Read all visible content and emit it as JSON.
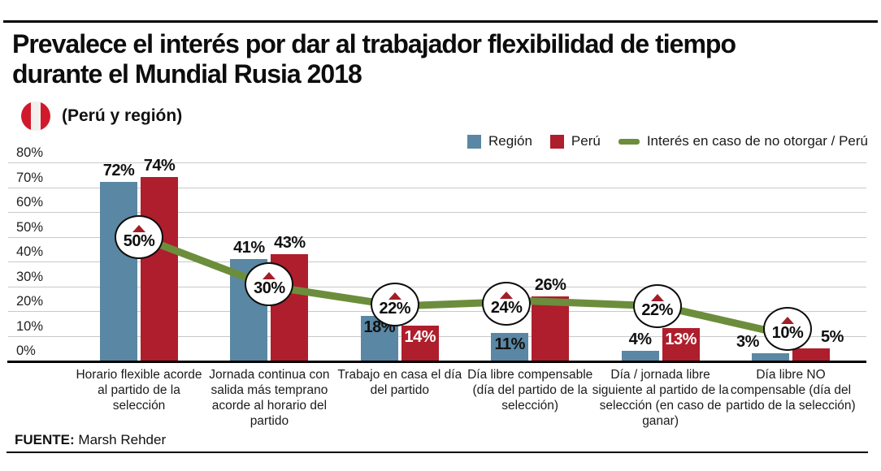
{
  "header": {
    "title": "Prevalece el interés por dar al trabajador flexibilidad de tiempo durante el Mundial Rusia 2018",
    "subtitle": "(Perú y región)"
  },
  "legend": {
    "items": [
      {
        "label": "Región",
        "swatch": "square",
        "color": "#5A87A3"
      },
      {
        "label": "Perú",
        "swatch": "square",
        "color": "#AE1E2C"
      },
      {
        "label": "Interés en caso de no otorgar / Perú",
        "swatch": "line",
        "color": "#6C8E3C"
      }
    ]
  },
  "source": {
    "prefix": "FUENTE:",
    "name": "Marsh Rehder"
  },
  "chart_data": {
    "type": "bar",
    "title": "Prevalece el interés por dar al trabajador flexibilidad de tiempo durante el Mundial Rusia 2018",
    "subtitle": "(Perú y región)",
    "categories": [
      "Horario flexible acorde al partido de la selección",
      "Jornada continua con salida más temprano acorde al horario del partido",
      "Trabajo en casa el día del partido",
      "Día libre compensable (día del partido de la selección)",
      "Día / jornada libre siguiente al partido de la selección (en caso de ganar)",
      "Día libre NO compensable (día del partido de la selección)"
    ],
    "series": [
      {
        "name": "Región",
        "type": "bar",
        "color": "#5A87A3",
        "values": [
          72,
          41,
          18,
          11,
          4,
          3
        ],
        "labels": [
          "72%",
          "41%",
          "18%",
          "11%",
          "4%",
          "3%"
        ],
        "label_pos": [
          "above",
          "above",
          "inside",
          "inside",
          "above",
          "above"
        ],
        "label_dx": [
          0,
          0,
          0,
          0,
          0,
          -28
        ],
        "inside_label_color": "#111111"
      },
      {
        "name": "Perú",
        "type": "bar",
        "color": "#AE1E2C",
        "values": [
          74,
          43,
          14,
          26,
          13,
          5
        ],
        "labels": [
          "74%",
          "43%",
          "14%",
          "26%",
          "13%",
          "5%"
        ],
        "label_pos": [
          "above",
          "above",
          "inside",
          "above",
          "inside",
          "above"
        ],
        "label_dx": [
          0,
          0,
          0,
          0,
          0,
          26
        ],
        "inside_label_color": "#FFFFFF"
      },
      {
        "name": "Interés en caso de no otorgar / Perú",
        "type": "line",
        "color": "#6C8E3C",
        "values": [
          50,
          30,
          22,
          24,
          22,
          10
        ],
        "labels": [
          "50%",
          "30%",
          "22%",
          "24%",
          "22%",
          "10%"
        ],
        "marker": "white-circle-with-up-triangle",
        "marker_triangle_color": "#A21E28",
        "marker_dx": [
          0,
          0,
          -6,
          -29,
          -4,
          -4
        ],
        "marker_dy": [
          0,
          -3,
          -2,
          3,
          0,
          -9
        ]
      }
    ],
    "y_axis": {
      "min": 0,
      "max": 80,
      "ticks": [
        "0%",
        "10%",
        "20%",
        "30%",
        "40%",
        "50%",
        "60%",
        "70%",
        "80%"
      ]
    },
    "grid": true,
    "legend_position": "top-right"
  }
}
